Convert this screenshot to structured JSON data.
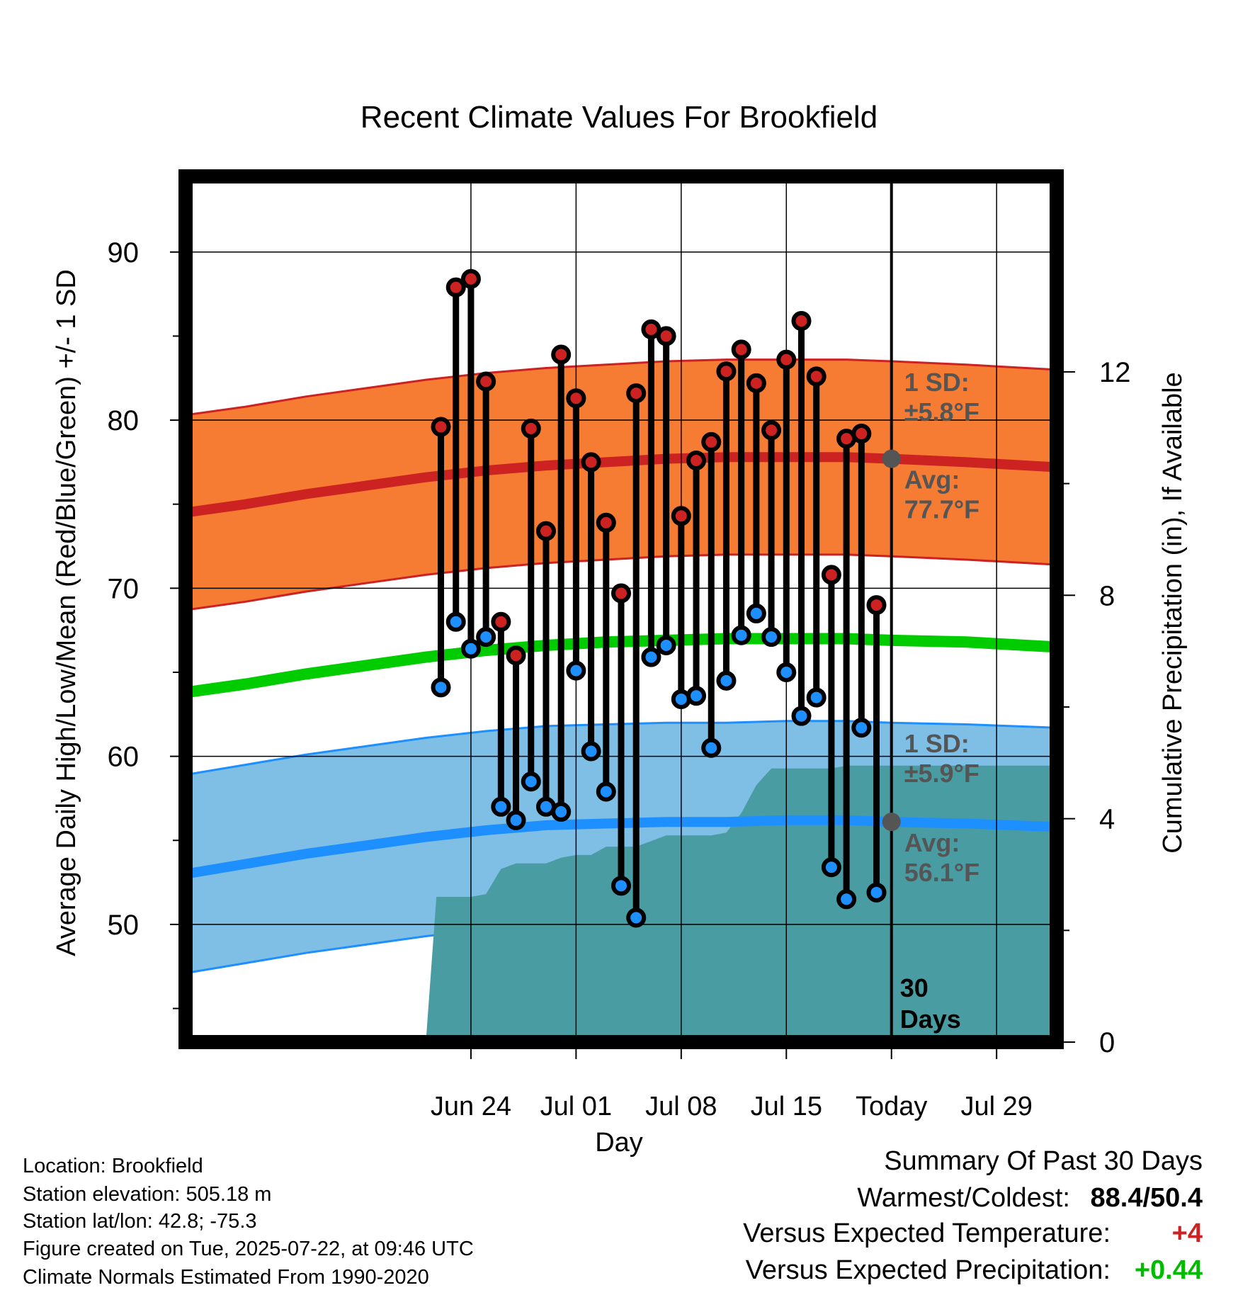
{
  "chart_data": {
    "type": "line",
    "title": "Recent Climate Values For Brookfield",
    "xlabel": "Day",
    "ylabel_left": "Average Daily High/Low/Mean (Red/Blue/Green) +/- 1 SD",
    "ylabel_right": "Cumulative Precipitation (in), If Available",
    "ylim_left": [
      43.0,
      94.5
    ],
    "ylim_right": [
      0,
      15.5
    ],
    "yticks_left": [
      90,
      80,
      70,
      60,
      50
    ],
    "yticks_left_labels": [
      "90",
      "80",
      "70",
      "60",
      "50"
    ],
    "yticks_right": [
      12,
      8,
      4,
      0
    ],
    "yticks_right_labels": [
      "12",
      "8",
      "4",
      "0"
    ],
    "x_range_days": [
      -16,
      42
    ],
    "x_ticks": [
      {
        "day": 3,
        "label": "Jun 24"
      },
      {
        "day": 10,
        "label": "Jul 01"
      },
      {
        "day": 17,
        "label": "Jul 08"
      },
      {
        "day": 24,
        "label": "Jul 15"
      },
      {
        "day": 31,
        "label": "Today"
      },
      {
        "day": 38,
        "label": "Jul 29"
      }
    ],
    "today_day": 31,
    "today_label_line1": "30",
    "today_label_line2": "Days",
    "normals": {
      "day": [
        -16,
        -12,
        -8,
        -4,
        0,
        4,
        8,
        12,
        16,
        20,
        24,
        28,
        31,
        36,
        42
      ],
      "high_avg": [
        74.5,
        75.0,
        75.6,
        76.1,
        76.6,
        77.0,
        77.3,
        77.5,
        77.7,
        77.8,
        77.8,
        77.8,
        77.7,
        77.5,
        77.2
      ],
      "low_avg": [
        53.0,
        53.6,
        54.2,
        54.7,
        55.2,
        55.6,
        55.9,
        56.0,
        56.1,
        56.1,
        56.2,
        56.2,
        56.1,
        56.0,
        55.8
      ],
      "mean_avg": [
        63.8,
        64.3,
        64.9,
        65.4,
        65.9,
        66.3,
        66.6,
        66.8,
        66.9,
        67.0,
        67.0,
        67.0,
        66.9,
        66.8,
        66.5
      ],
      "high_sd": 5.8,
      "low_sd": 5.9
    },
    "annotations": {
      "high_sd_line1": "1 SD:",
      "high_sd_line2": "±5.8°F",
      "high_avg_line1": "Avg:",
      "high_avg_line2": "77.7°F",
      "low_sd_line1": "1 SD:",
      "low_sd_line2": "±5.9°F",
      "low_avg_line1": "Avg:",
      "low_avg_line2": "56.1°F"
    },
    "daily": [
      {
        "day": 1,
        "high": 79.6,
        "low": 64.1
      },
      {
        "day": 2,
        "high": 87.9,
        "low": 68.0
      },
      {
        "day": 3,
        "high": 88.4,
        "low": 66.4
      },
      {
        "day": 4,
        "high": 82.3,
        "low": 67.1
      },
      {
        "day": 5,
        "high": 68.0,
        "low": 57.0
      },
      {
        "day": 6,
        "high": 66.0,
        "low": 56.2
      },
      {
        "day": 7,
        "high": 79.5,
        "low": 58.5
      },
      {
        "day": 8,
        "high": 73.4,
        "low": 57.0
      },
      {
        "day": 9,
        "high": 83.9,
        "low": 56.7
      },
      {
        "day": 10,
        "high": 81.3,
        "low": 65.1
      },
      {
        "day": 11,
        "high": 77.5,
        "low": 60.3
      },
      {
        "day": 12,
        "high": 73.9,
        "low": 57.9
      },
      {
        "day": 13,
        "high": 69.7,
        "low": 52.3
      },
      {
        "day": 14,
        "high": 81.6,
        "low": 50.4
      },
      {
        "day": 15,
        "high": 85.4,
        "low": 65.9
      },
      {
        "day": 16,
        "high": 85.0,
        "low": 66.6
      },
      {
        "day": 17,
        "high": 74.3,
        "low": 63.4
      },
      {
        "day": 18,
        "high": 77.6,
        "low": 63.6
      },
      {
        "day": 19,
        "high": 78.7,
        "low": 60.5
      },
      {
        "day": 20,
        "high": 82.9,
        "low": 64.5
      },
      {
        "day": 21,
        "high": 84.2,
        "low": 67.2
      },
      {
        "day": 22,
        "high": 82.2,
        "low": 68.5
      },
      {
        "day": 23,
        "high": 79.4,
        "low": 67.1
      },
      {
        "day": 24,
        "high": 83.6,
        "low": 65.0
      },
      {
        "day": 25,
        "high": 85.9,
        "low": 62.4
      },
      {
        "day": 26,
        "high": 82.6,
        "low": 63.5
      },
      {
        "day": 27,
        "high": 70.8,
        "low": 53.4
      },
      {
        "day": 28,
        "high": 78.9,
        "low": 51.5
      },
      {
        "day": 29,
        "high": 79.2,
        "low": 61.7
      },
      {
        "day": 30,
        "high": 69.0,
        "low": 51.9
      }
    ],
    "precipitation_cumulative": {
      "day": [
        0.0,
        0.7,
        2.0,
        2.5,
        3.0,
        4.0,
        5.0,
        6.0,
        7.0,
        8.0,
        9.0,
        10.0,
        11.0,
        12.0,
        13.0,
        14.0,
        15.0,
        16.0,
        17.0,
        18.0,
        19.0,
        20.0,
        21.0,
        22.0,
        23.0,
        24.0,
        25.0,
        26.0,
        27.0,
        28.0,
        29.0,
        30.0,
        31.0
      ],
      "inches": [
        0.0,
        2.6,
        2.6,
        2.6,
        2.6,
        2.65,
        3.1,
        3.2,
        3.2,
        3.2,
        3.3,
        3.35,
        3.35,
        3.5,
        3.5,
        3.5,
        3.6,
        3.7,
        3.7,
        3.7,
        3.7,
        3.75,
        4.1,
        4.6,
        4.9,
        4.9,
        4.9,
        4.9,
        4.9,
        4.95,
        4.95,
        4.95,
        4.95
      ]
    }
  },
  "info": {
    "location": "Location: Brookfield",
    "elevation": "Station elevation: 505.18 m",
    "latlon": "Station lat/lon: 42.8; -75.3",
    "created": "Figure created on Tue, 2025-07-22, at 09:46 UTC",
    "normals": "Climate Normals Estimated From 1990-2020"
  },
  "summary": {
    "title": "Summary Of Past 30 Days",
    "warm_cold_label": "Warmest/Coldest:",
    "warm_cold_value": "88.4/50.4",
    "temp_label": "Versus Expected Temperature:",
    "temp_value": "+4",
    "precip_label": "Versus Expected Precipitation:",
    "precip_value": "+0.44"
  },
  "colors": {
    "high_band": "#f57c32",
    "high_line": "#cc2222",
    "low_band": "#7fbfe6",
    "low_line": "#1e8fff",
    "mean_line": "#00cc00",
    "precip_fill": "#4a9ca3",
    "high_marker": "#cc2222",
    "low_marker": "#1e8fff",
    "annotation_text": "#555555",
    "avg_dot": "#555555",
    "temp_positive": "#cc2222",
    "precip_positive": "#00bb00"
  }
}
